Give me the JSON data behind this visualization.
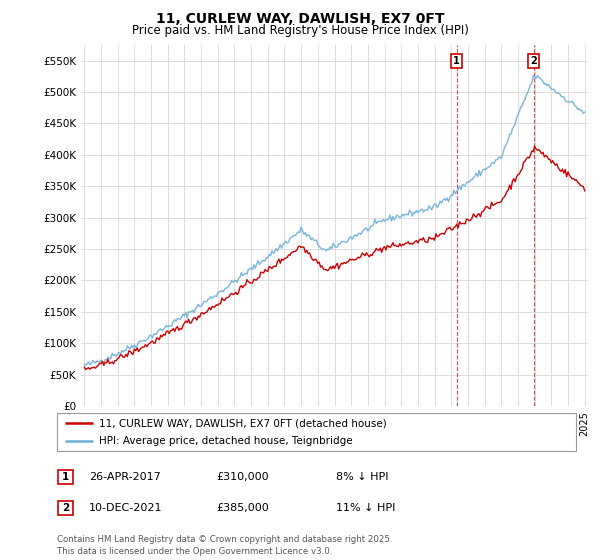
{
  "title": "11, CURLEW WAY, DAWLISH, EX7 0FT",
  "subtitle": "Price paid vs. HM Land Registry's House Price Index (HPI)",
  "ytick_values": [
    0,
    50000,
    100000,
    150000,
    200000,
    250000,
    300000,
    350000,
    400000,
    450000,
    500000,
    550000
  ],
  "ylim": [
    0,
    575000
  ],
  "x_start_year": 1995,
  "x_end_year": 2025,
  "hpi_color": "#6baed6",
  "price_color": "#cc0000",
  "grid_color": "#dddddd",
  "background_color": "#ffffff",
  "purchase1_date": "26-APR-2017",
  "purchase1_price": 310000,
  "purchase1_hpi_diff": "8% ↓ HPI",
  "purchase2_date": "10-DEC-2021",
  "purchase2_price": 385000,
  "purchase2_hpi_diff": "11% ↓ HPI",
  "legend_line1": "11, CURLEW WAY, DAWLISH, EX7 0FT (detached house)",
  "legend_line2": "HPI: Average price, detached house, Teignbridge",
  "footnote": "Contains HM Land Registry data © Crown copyright and database right 2025.\nThis data is licensed under the Open Government Licence v3.0.",
  "marker1_x": 2017.32,
  "marker2_x": 2021.94,
  "dashed_line_color": "#cc0000",
  "marker_box_color": "#cc0000"
}
